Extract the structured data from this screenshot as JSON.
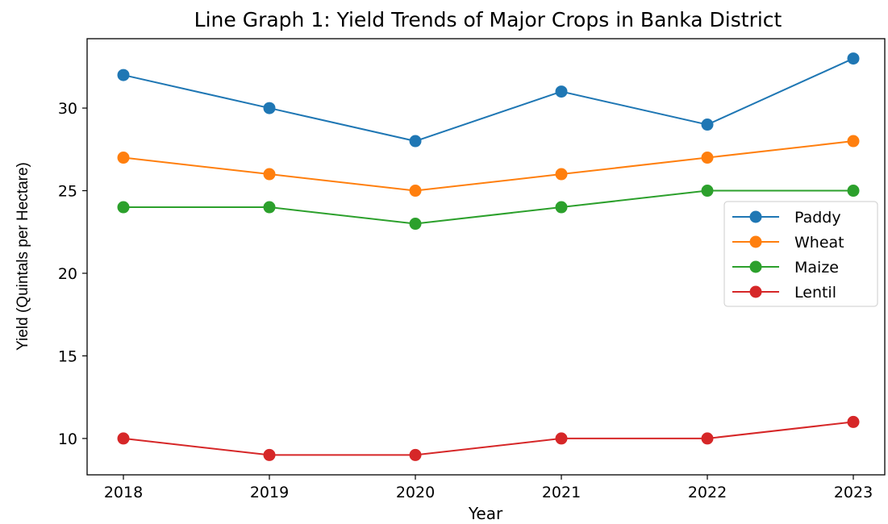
{
  "chart_data": {
    "type": "line",
    "title": "Line Graph 1: Yield Trends of Major Crops in Banka District",
    "xlabel": "Year",
    "ylabel": "Yield (Quintals per Hectare)",
    "x": [
      "2018",
      "2019",
      "2020",
      "2021",
      "2022",
      "2023"
    ],
    "ylim": [
      7.8,
      34.2
    ],
    "yticks": [
      10,
      15,
      20,
      25,
      30
    ],
    "grid": false,
    "legend_position": "center-right",
    "series": [
      {
        "name": "Paddy",
        "color": "#1f77b4",
        "values": [
          32,
          30,
          28,
          31,
          29,
          33
        ]
      },
      {
        "name": "Wheat",
        "color": "#ff7f0e",
        "values": [
          27,
          26,
          25,
          26,
          27,
          28
        ]
      },
      {
        "name": "Maize",
        "color": "#2ca02c",
        "values": [
          24,
          24,
          23,
          24,
          25,
          25
        ]
      },
      {
        "name": "Lentil",
        "color": "#d62728",
        "values": [
          10,
          9,
          9,
          10,
          10,
          11
        ]
      }
    ]
  }
}
